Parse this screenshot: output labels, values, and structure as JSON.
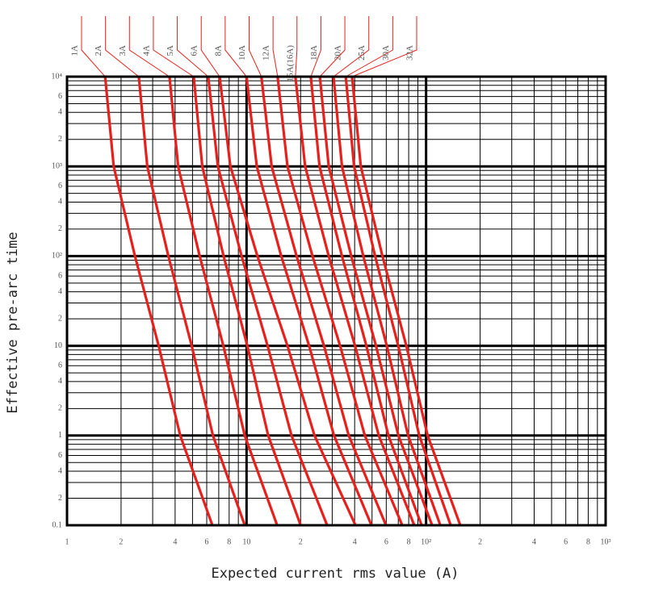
{
  "chart_data": {
    "type": "line",
    "x_label": "Expected current rms value (A)",
    "y_label": "Effective pre-arc time",
    "log_x": true,
    "log_y": true,
    "grid": true,
    "xlim": [
      1,
      1000
    ],
    "ylim": [
      0.1,
      10000
    ],
    "xticks": [
      1,
      2,
      4,
      6,
      8,
      10,
      {
        "value": 20,
        "label": "2"
      },
      {
        "value": 40,
        "label": "4"
      },
      {
        "value": 60,
        "label": "6"
      },
      {
        "value": 80,
        "label": "8"
      },
      {
        "value": 100,
        "label": "10²"
      },
      {
        "value": 200,
        "label": "2"
      },
      {
        "value": 400,
        "label": "4"
      },
      {
        "value": 600,
        "label": "6"
      },
      {
        "value": 800,
        "label": "8"
      },
      {
        "value": 1000,
        "label": "10³"
      }
    ],
    "yticks": [
      0.1,
      {
        "value": 0.2,
        "label": "2"
      },
      {
        "value": 0.4,
        "label": "4"
      },
      {
        "value": 0.6,
        "label": "6"
      },
      1,
      2,
      4,
      6,
      10,
      {
        "value": 20,
        "label": "2"
      },
      {
        "value": 40,
        "label": "4"
      },
      {
        "value": 60,
        "label": "6"
      },
      {
        "value": 100,
        "label": "10²"
      },
      {
        "value": 200,
        "label": "2"
      },
      {
        "value": 400,
        "label": "4"
      },
      {
        "value": 600,
        "label": "6"
      },
      {
        "value": 1000,
        "label": "10³"
      },
      {
        "value": 2000,
        "label": "2"
      },
      {
        "value": 4000,
        "label": "4"
      },
      {
        "value": 6000,
        "label": "6"
      },
      {
        "value": 10000,
        "label": "10⁴"
      }
    ],
    "xgrid_minor": [
      3,
      5,
      7,
      9,
      30,
      50,
      70,
      90,
      300,
      500,
      700,
      900
    ],
    "ygrid_minor": [
      0.3,
      0.5,
      0.7,
      0.8,
      0.9,
      3,
      5,
      7,
      8,
      9,
      30,
      50,
      70,
      80,
      90,
      300,
      500,
      700,
      800,
      900,
      3000,
      5000,
      7000,
      8000,
      9000
    ],
    "series": [
      {
        "name": "1A",
        "color": "#e8201c",
        "x": [
          1.63,
          1.82,
          2.39,
          3.24,
          4.27,
          6.45
        ],
        "values": [
          10000,
          1000,
          100,
          10,
          1,
          0.1
        ]
      },
      {
        "name": "2A",
        "color": "#e8201c",
        "x": [
          2.51,
          2.8,
          3.67,
          4.95,
          6.5,
          9.77
        ],
        "values": [
          10000,
          1000,
          100,
          10,
          1,
          0.1
        ]
      },
      {
        "name": "3A",
        "color": "#e8201c",
        "x": [
          3.72,
          4.16,
          5.48,
          7.43,
          9.77,
          14.8
        ],
        "values": [
          10000,
          1000,
          100,
          10,
          1,
          0.1
        ]
      },
      {
        "name": "4A",
        "color": "#e8201c",
        "x": [
          5.08,
          5.67,
          7.45,
          10.1,
          13.2,
          20.0
        ],
        "values": [
          10000,
          1000,
          100,
          10,
          1,
          0.1
        ]
      },
      {
        "name": "5A",
        "color": "#e8201c",
        "x": [
          6.12,
          6.92,
          9.38,
          13.1,
          17.8,
          28.1
        ],
        "values": [
          10000,
          1000,
          100,
          10,
          1,
          0.1
        ]
      },
      {
        "name": "6A",
        "color": "#e8201c",
        "x": [
          7.08,
          8.13,
          11.5,
          16.9,
          23.9,
          40.4
        ],
        "values": [
          10000,
          1000,
          100,
          10,
          1,
          0.1
        ]
      },
      {
        "name": "8A",
        "color": "#e8201c",
        "x": [
          10.0,
          11.4,
          15.6,
          22.3,
          30.7,
          49.6
        ],
        "values": [
          10000,
          1000,
          100,
          10,
          1,
          0.1
        ]
      },
      {
        "name": "10A",
        "color": "#e8201c",
        "x": [
          12.1,
          13.8,
          19.0,
          27.0,
          37.1,
          59.8
        ],
        "values": [
          10000,
          1000,
          100,
          10,
          1,
          0.1
        ]
      },
      {
        "name": "12A",
        "color": "#e8201c",
        "x": [
          14.9,
          16.9,
          23.3,
          33.2,
          45.6,
          73.6
        ],
        "values": [
          10000,
          1000,
          100,
          10,
          1,
          0.1
        ]
      },
      {
        "name": "15A(16A)",
        "color": "#e8201c",
        "x": [
          18.7,
          21.2,
          28.7,
          40.2,
          54.5,
          85.9
        ],
        "values": [
          10000,
          1000,
          100,
          10,
          1,
          0.1
        ]
      },
      {
        "name": "18A",
        "color": "#e8201c",
        "x": [
          22.8,
          25.5,
          34.0,
          46.5,
          61.7,
          94.4
        ],
        "values": [
          10000,
          1000,
          100,
          10,
          1,
          0.1
        ]
      },
      {
        "name": "20A",
        "color": "#e8201c",
        "x": [
          25.6,
          28.7,
          38.3,
          52.6,
          70.1,
          108
        ],
        "values": [
          10000,
          1000,
          100,
          10,
          1,
          0.1
        ]
      },
      {
        "name": "25A",
        "color": "#e8201c",
        "x": [
          30.5,
          34.0,
          44.7,
          60.4,
          79.4,
          120
        ],
        "values": [
          10000,
          1000,
          100,
          10,
          1,
          0.1
        ]
      },
      {
        "name": "30A",
        "color": "#e8201c",
        "x": [
          35.7,
          39.7,
          52.0,
          70.0,
          91.6,
          137
        ],
        "values": [
          10000,
          1000,
          100,
          10,
          1,
          0.1
        ]
      },
      {
        "name": "32A",
        "color": "#e8201c",
        "x": [
          38.7,
          43.3,
          57.1,
          77.6,
          102,
          155
        ],
        "values": [
          10000,
          1000,
          100,
          10,
          1,
          0.1
        ]
      }
    ]
  }
}
